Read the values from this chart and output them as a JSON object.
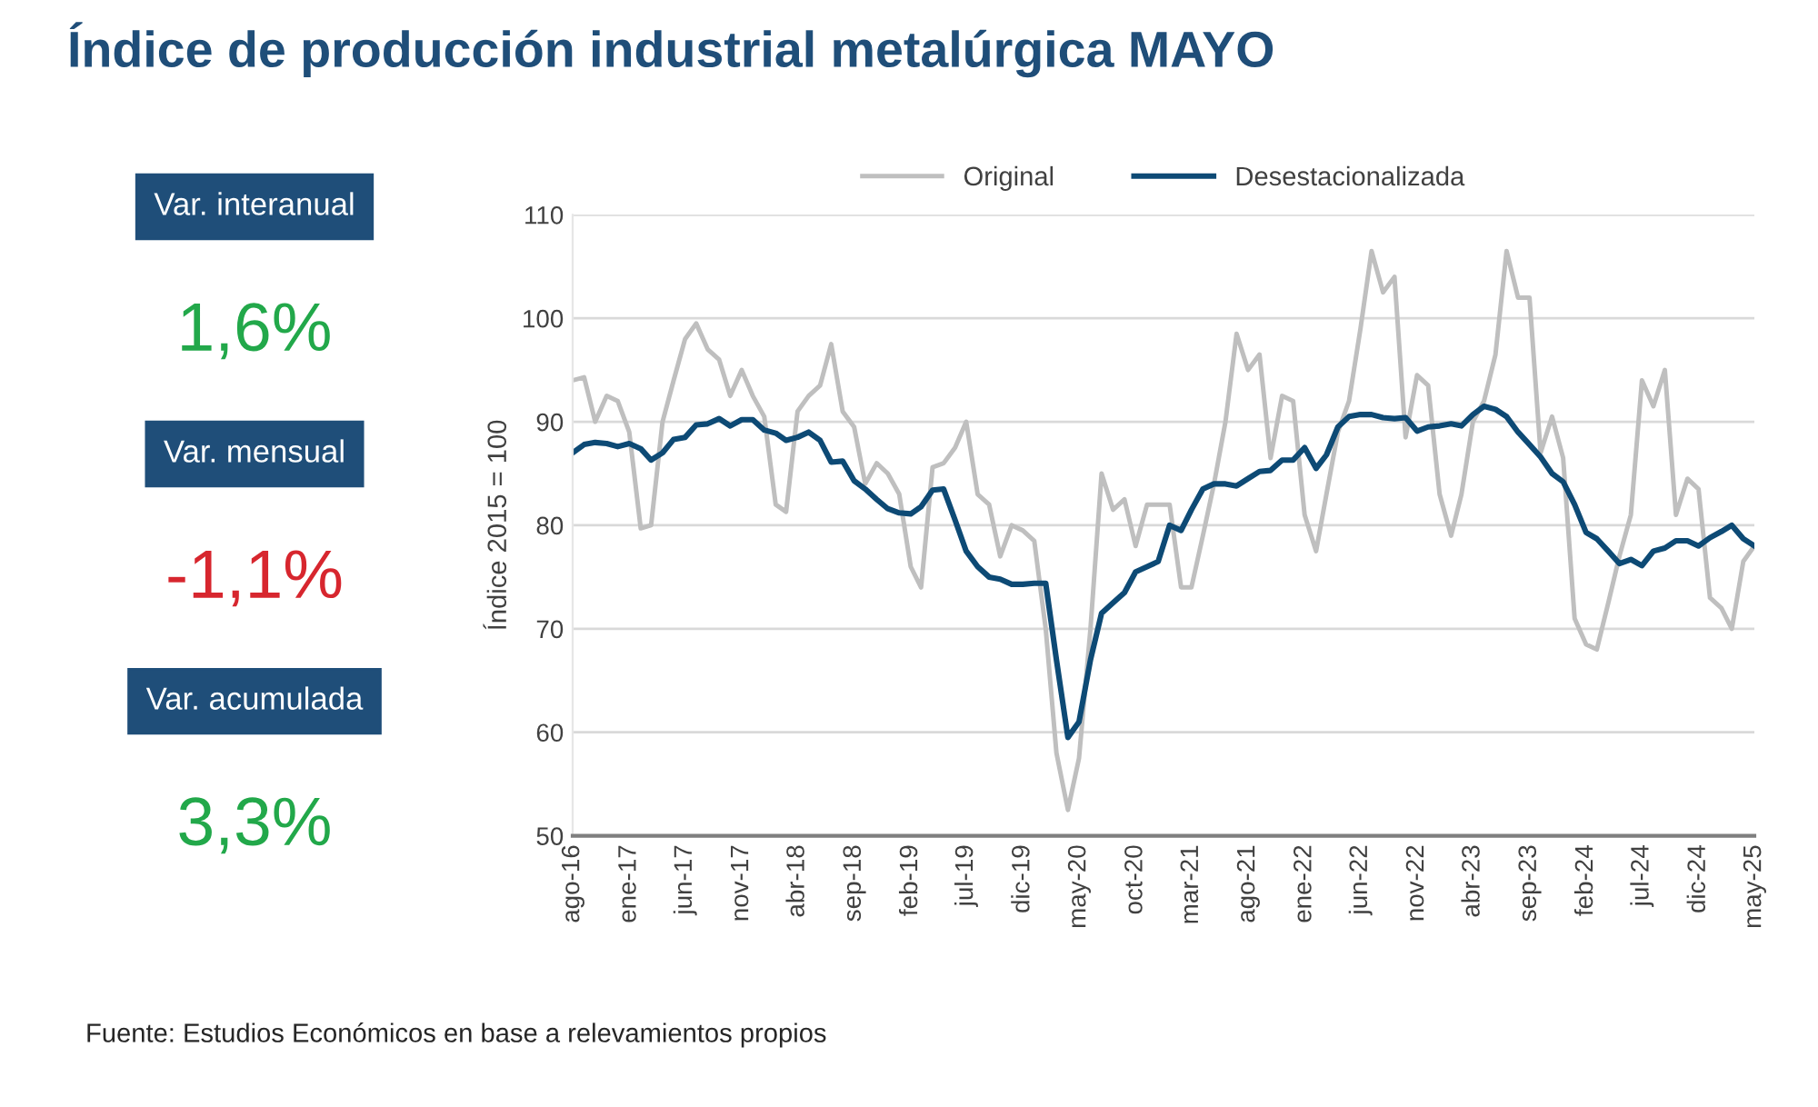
{
  "chart_data": [
    {
      "type": "other",
      "annotations": [
        "Var. interanual",
        "1,6%",
        "Var. mensual",
        "-1,1%",
        "Var. acumulada",
        "3,3%"
      ],
      "colors": [
        "#1f4e79",
        "#22a84a",
        "#1f4e79",
        "#d7262e",
        "#1f4e79",
        "#22a84a"
      ]
    },
    {
      "type": "line",
      "title": "Índice de producción industrial metalúrgica MAYO",
      "ylabel": "Índice 2015 = 100",
      "annotations": [
        "Fuente: Estudios Económicos en base a relevamientos propios"
      ],
      "x": [
        "2016-08",
        "2016-09",
        "2016-10",
        "2016-11",
        "2016-12",
        "2017-01",
        "2017-02",
        "2017-03",
        "2017-04",
        "2017-05",
        "2017-06",
        "2017-07",
        "2017-08",
        "2017-09",
        "2017-10",
        "2017-11",
        "2017-12",
        "2018-01",
        "2018-02",
        "2018-03",
        "2018-04",
        "2018-05",
        "2018-06",
        "2018-07",
        "2018-08",
        "2018-09",
        "2018-10",
        "2018-11",
        "2018-12",
        "2019-01",
        "2019-02",
        "2019-03",
        "2019-04",
        "2019-05",
        "2019-06",
        "2019-07",
        "2019-08",
        "2019-09",
        "2019-10",
        "2019-11",
        "2019-12",
        "2020-01",
        "2020-02",
        "2020-03",
        "2020-04",
        "2020-05",
        "2020-06",
        "2020-07",
        "2020-08",
        "2020-09",
        "2020-10",
        "2020-11",
        "2020-12",
        "2021-01",
        "2021-02",
        "2021-03",
        "2021-04",
        "2021-05",
        "2021-06",
        "2021-07",
        "2021-08",
        "2021-09",
        "2021-10",
        "2021-11",
        "2021-12",
        "2022-01",
        "2022-02",
        "2022-03",
        "2022-04",
        "2022-05",
        "2022-06",
        "2022-07",
        "2022-08",
        "2022-09",
        "2022-10",
        "2022-11",
        "2022-12",
        "2023-01",
        "2023-02",
        "2023-03",
        "2023-04",
        "2023-05",
        "2023-06",
        "2023-07",
        "2023-08",
        "2023-09",
        "2023-10",
        "2023-11",
        "2023-12",
        "2024-01",
        "2024-02",
        "2024-03",
        "2024-04",
        "2024-05",
        "2024-06",
        "2024-07",
        "2024-08",
        "2024-09",
        "2024-10",
        "2024-11",
        "2024-12",
        "2025-01",
        "2025-02",
        "2025-03",
        "2025-04",
        "2025-05"
      ],
      "series": [
        {
          "name": "Original",
          "color": "#bfbfbf",
          "values": [
            94,
            94.3,
            90,
            92.5,
            92,
            89,
            79.7,
            80,
            90,
            94,
            98,
            99.5,
            97,
            96,
            92.5,
            95,
            92.5,
            90.5,
            82,
            81.3,
            91,
            92.5,
            93.5,
            97.5,
            91,
            89.5,
            84,
            86,
            85,
            83,
            76,
            74,
            85.6,
            86,
            87.5,
            90,
            83,
            82,
            77,
            80,
            79.5,
            78.5,
            70,
            58,
            52.5,
            57.5,
            70,
            85,
            81.5,
            82.5,
            78,
            82,
            82,
            82,
            74,
            74,
            79,
            84,
            90,
            98.5,
            95,
            96.5,
            86.5,
            92.5,
            92,
            81,
            77.5,
            83,
            89,
            92,
            99,
            106.5,
            102.5,
            104,
            88.5,
            94.5,
            93.5,
            83,
            79,
            83,
            90,
            92,
            96.5,
            106.5,
            102,
            102,
            87,
            90.5,
            86.5,
            71,
            68.5,
            68,
            72.5,
            77,
            81,
            94,
            91.5,
            95,
            81,
            84.5,
            83.5,
            73,
            72,
            70,
            76.5,
            78
          ]
        },
        {
          "name": "Desestacionalizada",
          "color": "#0d4a75",
          "values": [
            87,
            87.8,
            88,
            87.9,
            87.6,
            87.9,
            87.4,
            86.3,
            87,
            88.3,
            88.5,
            89.7,
            89.8,
            90.3,
            89.6,
            90.2,
            90.2,
            89.2,
            88.9,
            88.2,
            88.5,
            89,
            88.2,
            86.1,
            86.2,
            84.3,
            83.5,
            82.5,
            81.6,
            81.2,
            81.1,
            81.8,
            83.4,
            83.5,
            80.5,
            77.5,
            76,
            75,
            74.8,
            74.3,
            74.3,
            74.4,
            74.4,
            67,
            59.5,
            61,
            67,
            71.5,
            72.5,
            73.5,
            75.5,
            76,
            76.5,
            80,
            79.5,
            81.5,
            83.5,
            84,
            84,
            83.8,
            84.5,
            85.2,
            85.3,
            86.3,
            86.3,
            87.5,
            85.5,
            86.8,
            89.5,
            90.5,
            90.7,
            90.7,
            90.4,
            90.3,
            90.4,
            89.1,
            89.5,
            89.6,
            89.8,
            89.6,
            90.7,
            91.5,
            91.2,
            90.5,
            89,
            87.8,
            86.6,
            85,
            84.2,
            82,
            79.3,
            78.7,
            77.5,
            76.3,
            76.7,
            76.1,
            77.5,
            77.8,
            78.5,
            78.5,
            78,
            78.8,
            79.4,
            80,
            78.7,
            78
          ]
        }
      ],
      "ylim": [
        50,
        110
      ],
      "yticks": [
        50,
        60,
        70,
        80,
        90,
        100,
        110
      ],
      "xlim": [
        "2016-08",
        "2025-05"
      ],
      "xticks": [
        {
          "value": "2016-08",
          "label": "ago-16"
        },
        {
          "value": "2017-01",
          "label": "ene-17"
        },
        {
          "value": "2017-06",
          "label": "jun-17"
        },
        {
          "value": "2017-11",
          "label": "nov-17"
        },
        {
          "value": "2018-04",
          "label": "abr-18"
        },
        {
          "value": "2018-09",
          "label": "sep-18"
        },
        {
          "value": "2019-02",
          "label": "feb-19"
        },
        {
          "value": "2019-07",
          "label": "jul-19"
        },
        {
          "value": "2019-12",
          "label": "dic-19"
        },
        {
          "value": "2020-05",
          "label": "may-20"
        },
        {
          "value": "2020-10",
          "label": "oct-20"
        },
        {
          "value": "2021-03",
          "label": "mar-21"
        },
        {
          "value": "2021-08",
          "label": "ago-21"
        },
        {
          "value": "2022-01",
          "label": "ene-22"
        },
        {
          "value": "2022-06",
          "label": "jun-22"
        },
        {
          "value": "2022-11",
          "label": "nov-22"
        },
        {
          "value": "2023-04",
          "label": "abr-23"
        },
        {
          "value": "2023-09",
          "label": "sep-23"
        },
        {
          "value": "2024-02",
          "label": "feb-24"
        },
        {
          "value": "2024-07",
          "label": "jul-24"
        },
        {
          "value": "2024-12",
          "label": "dic-24"
        },
        {
          "value": "2025-05",
          "label": "may-25"
        }
      ],
      "grid": "y",
      "legend": "top",
      "marker": "none",
      "line_style": "solid"
    }
  ]
}
